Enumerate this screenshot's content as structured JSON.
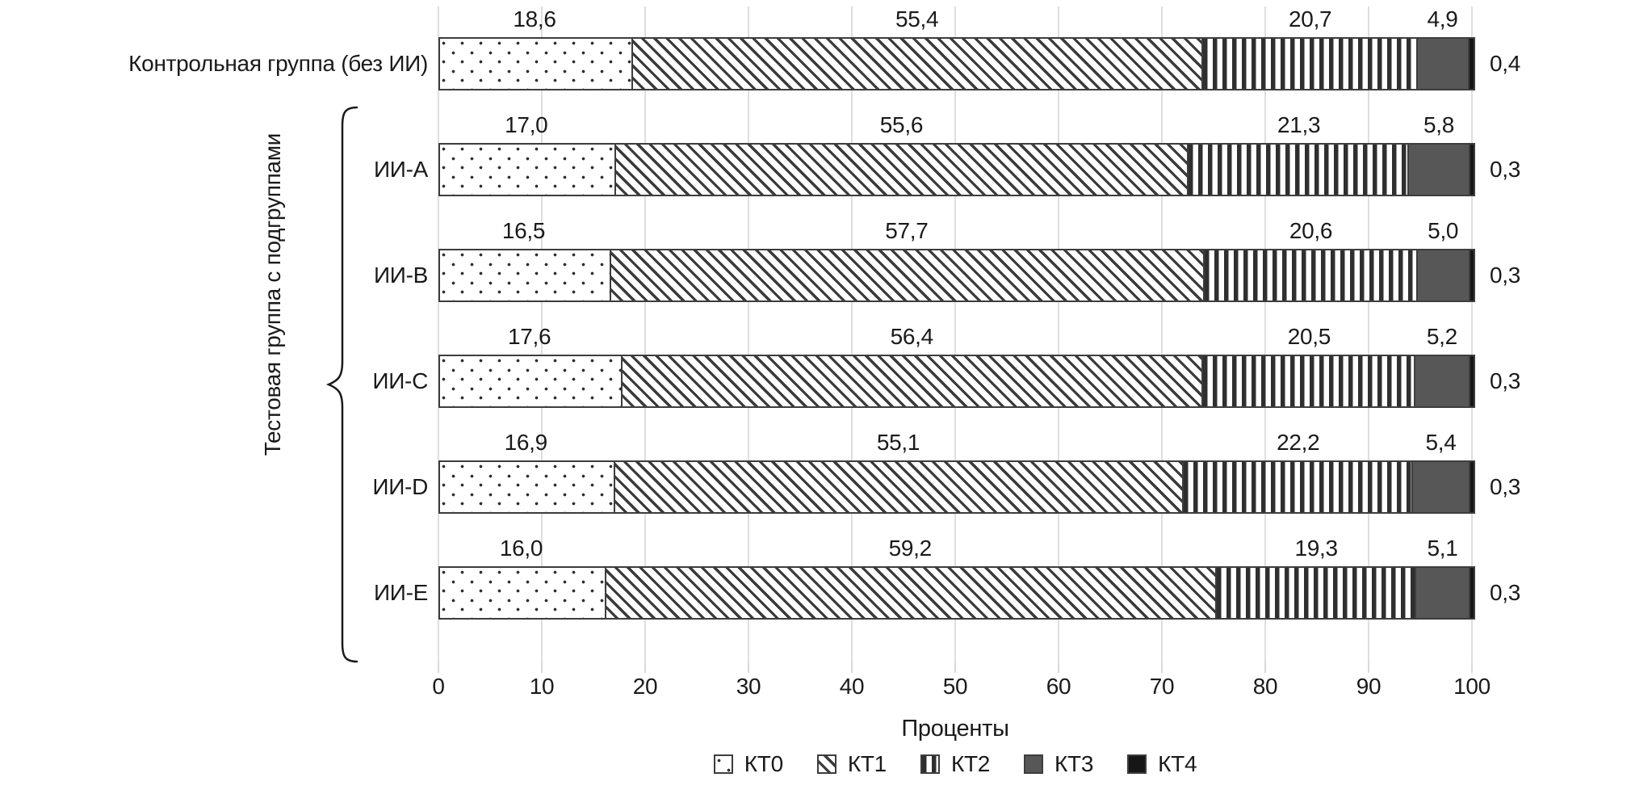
{
  "chart_data": {
    "type": "bar",
    "orientation": "horizontal",
    "stacked": true,
    "title": "",
    "xlabel": "Проценты",
    "ylabel": "",
    "xlim": [
      0,
      100
    ],
    "x_ticks": [
      0,
      10,
      20,
      30,
      40,
      50,
      60,
      70,
      80,
      90,
      100
    ],
    "grid": true,
    "legend_position": "bottom",
    "decimal_separator": ",",
    "categories": [
      "Контрольная группа (без ИИ)",
      "ИИ-A",
      "ИИ-B",
      "ИИ-C",
      "ИИ-D",
      "ИИ-E"
    ],
    "group_label": "Тестовая группа с подгруппами",
    "grouped_categories": [
      "ИИ-A",
      "ИИ-B",
      "ИИ-C",
      "ИИ-D",
      "ИИ-E"
    ],
    "series": [
      {
        "name": "КТ0",
        "pattern": "dots",
        "values": [
          18.6,
          17.0,
          16.5,
          17.6,
          16.9,
          16.0
        ]
      },
      {
        "name": "КТ1",
        "pattern": "diagonal-hatch",
        "values": [
          55.4,
          55.6,
          57.7,
          56.4,
          55.1,
          59.2
        ]
      },
      {
        "name": "КТ2",
        "pattern": "vertical-stripes",
        "values": [
          20.7,
          21.3,
          20.6,
          20.5,
          22.2,
          19.3
        ]
      },
      {
        "name": "КТ3",
        "pattern": "solid-dark-gray",
        "values": [
          4.9,
          5.8,
          5.0,
          5.2,
          5.4,
          5.1
        ]
      },
      {
        "name": "КТ4",
        "pattern": "solid-black",
        "values": [
          0.4,
          0.3,
          0.3,
          0.3,
          0.3,
          0.3
        ]
      }
    ],
    "value_labels": [
      [
        "18,6",
        "55,4",
        "20,7",
        "4,9",
        "0,4"
      ],
      [
        "17,0",
        "55,6",
        "21,3",
        "5,8",
        "0,3"
      ],
      [
        "16,5",
        "57,7",
        "20,6",
        "5,0",
        "0,3"
      ],
      [
        "17,6",
        "56,4",
        "20,5",
        "5,2",
        "0,3"
      ],
      [
        "16,9",
        "55,1",
        "22,2",
        "5,4",
        "0,3"
      ],
      [
        "16,0",
        "59,2",
        "19,3",
        "5,1",
        "0,3"
      ]
    ]
  },
  "styles": {
    "background": "#ffffff",
    "text": "#1a1a1a",
    "gridline": "#dedede",
    "segment_border": "#3d3d3d",
    "pattern_ink": "#2f2f2f",
    "kt3_fill": "#575757",
    "kt4_fill": "#161616"
  }
}
